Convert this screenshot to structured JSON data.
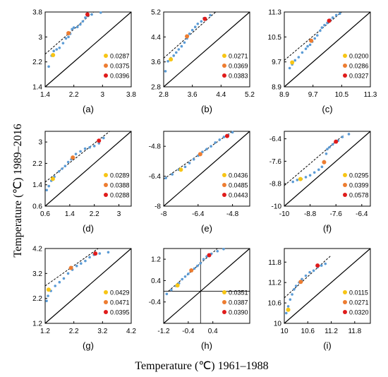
{
  "figure": {
    "ylabel": "Temperature (℃)  1989–2016",
    "xlabel": "Temperature (℃) 1961–1988"
  },
  "colors": {
    "points": "#5b9bd5",
    "p_low": "#f7c515",
    "p_mid": "#ed7d31",
    "p_high": "#e01b1b",
    "line": "#000000"
  },
  "chart_data": [
    {
      "type": "scatter",
      "panel_label": "(a)",
      "xlim": [
        1.4,
        3.8
      ],
      "ylim": [
        1.4,
        3.8
      ],
      "xticks": [
        "1.4",
        "2.2",
        "3",
        "3.8"
      ],
      "yticks": [
        "1.4",
        "2.2",
        "3",
        "3.8"
      ],
      "points": [
        [
          1.5,
          2.05
        ],
        [
          1.58,
          2.4
        ],
        [
          1.64,
          2.55
        ],
        [
          1.72,
          2.6
        ],
        [
          1.8,
          2.65
        ],
        [
          1.9,
          2.8
        ],
        [
          1.98,
          2.95
        ],
        [
          2.05,
          3.0
        ],
        [
          2.1,
          3.1
        ],
        [
          2.15,
          3.25
        ],
        [
          2.2,
          3.3
        ],
        [
          2.3,
          3.32
        ],
        [
          2.38,
          3.4
        ],
        [
          2.45,
          3.5
        ],
        [
          2.52,
          3.62
        ],
        [
          2.58,
          3.68
        ],
        [
          2.7,
          3.72
        ],
        [
          2.95,
          3.78
        ]
      ],
      "highlights": [
        {
          "x": 1.62,
          "y": 2.42,
          "color": "p_low",
          "label": "0.0287"
        },
        {
          "x": 2.05,
          "y": 3.12,
          "color": "p_mid",
          "label": "0.0375"
        },
        {
          "x": 2.58,
          "y": 3.72,
          "color": "p_high",
          "label": "0.0396"
        }
      ],
      "trend": [
        [
          1.4,
          2.45
        ],
        [
          2.75,
          3.8
        ]
      ]
    },
    {
      "type": "scatter",
      "panel_label": "(b)",
      "xlim": [
        2.8,
        5.2
      ],
      "ylim": [
        2.8,
        5.2
      ],
      "xticks": [
        "2.8",
        "3.6",
        "4.4",
        "5.2"
      ],
      "yticks": [
        "2.8",
        "3.6",
        "4.4",
        "5.2"
      ],
      "points": [
        [
          2.85,
          3.3
        ],
        [
          2.92,
          3.62
        ],
        [
          3.0,
          3.72
        ],
        [
          3.08,
          3.8
        ],
        [
          3.15,
          3.9
        ],
        [
          3.22,
          4.0
        ],
        [
          3.3,
          4.1
        ],
        [
          3.38,
          4.22
        ],
        [
          3.45,
          4.35
        ],
        [
          3.52,
          4.5
        ],
        [
          3.6,
          4.62
        ],
        [
          3.68,
          4.72
        ],
        [
          3.75,
          4.82
        ],
        [
          3.85,
          4.9
        ],
        [
          3.92,
          5.0
        ],
        [
          4.1,
          5.1
        ]
      ],
      "highlights": [
        {
          "x": 3.0,
          "y": 3.68,
          "color": "p_low",
          "label": "0.0271"
        },
        {
          "x": 3.45,
          "y": 4.42,
          "color": "p_mid",
          "label": "0.0369"
        },
        {
          "x": 3.95,
          "y": 4.98,
          "color": "p_high",
          "label": "0.0383"
        }
      ],
      "trend": [
        [
          2.8,
          3.72
        ],
        [
          4.25,
          5.2
        ]
      ]
    },
    {
      "type": "scatter",
      "panel_label": "(c)",
      "xlim": [
        8.9,
        11.3
      ],
      "ylim": [
        8.9,
        11.3
      ],
      "xticks": [
        "8.9",
        "9.7",
        "10.5",
        "11.3"
      ],
      "yticks": [
        "8.9",
        "9.7",
        "10.5",
        "11.3"
      ],
      "points": [
        [
          9.05,
          9.5
        ],
        [
          9.12,
          9.62
        ],
        [
          9.2,
          9.75
        ],
        [
          9.3,
          9.85
        ],
        [
          9.4,
          10.0
        ],
        [
          9.5,
          10.12
        ],
        [
          9.55,
          10.2
        ],
        [
          9.62,
          10.25
        ],
        [
          9.68,
          10.35
        ],
        [
          9.75,
          10.45
        ],
        [
          9.82,
          10.55
        ],
        [
          9.9,
          10.7
        ],
        [
          9.95,
          10.8
        ],
        [
          10.02,
          10.88
        ],
        [
          10.1,
          10.95
        ],
        [
          10.18,
          11.05
        ],
        [
          10.25,
          11.12
        ],
        [
          10.35,
          11.2
        ],
        [
          10.45,
          11.25
        ]
      ],
      "highlights": [
        {
          "x": 9.12,
          "y": 9.68,
          "color": "p_low",
          "label": "0.0200"
        },
        {
          "x": 9.65,
          "y": 10.38,
          "color": "p_mid",
          "label": "0.0286"
        },
        {
          "x": 10.15,
          "y": 11.02,
          "color": "p_high",
          "label": "0.0327"
        }
      ],
      "trend": [
        [
          8.9,
          9.75
        ],
        [
          10.5,
          11.3
        ]
      ]
    },
    {
      "type": "scatter",
      "panel_label": "(d)",
      "xlim": [
        0.6,
        3.4
      ],
      "ylim": [
        0.6,
        3.4
      ],
      "xticks": [
        "0.6",
        "1.4",
        "2.2",
        "3"
      ],
      "yticks": [
        "0.6",
        "1.4",
        "2.2",
        "3"
      ],
      "points": [
        [
          0.65,
          1.2
        ],
        [
          0.72,
          1.35
        ],
        [
          0.8,
          1.55
        ],
        [
          0.9,
          1.7
        ],
        [
          1.05,
          1.9
        ],
        [
          1.15,
          2.0
        ],
        [
          1.25,
          2.1
        ],
        [
          1.35,
          2.25
        ],
        [
          1.45,
          2.35
        ],
        [
          1.6,
          2.55
        ],
        [
          1.75,
          2.65
        ],
        [
          1.9,
          2.75
        ],
        [
          2.05,
          2.8
        ],
        [
          2.2,
          2.85
        ],
        [
          2.35,
          2.95
        ],
        [
          2.5,
          3.15
        ]
      ],
      "highlights": [
        {
          "x": 0.85,
          "y": 1.62,
          "color": "p_low",
          "label": "0.0289"
        },
        {
          "x": 1.5,
          "y": 2.42,
          "color": "p_mid",
          "label": "0.0388"
        },
        {
          "x": 2.35,
          "y": 3.05,
          "color": "p_high",
          "label": "0.0288"
        }
      ],
      "trend": [
        [
          0.6,
          1.5
        ],
        [
          2.7,
          3.4
        ]
      ]
    },
    {
      "type": "scatter",
      "panel_label": "(e)",
      "xlim": [
        -8,
        -4
      ],
      "ylim": [
        -8,
        -4
      ],
      "xticks": [
        "-8",
        "-6.4",
        "-4.8"
      ],
      "yticks": [
        "-8",
        "-6.4",
        "-4.8"
      ],
      "points": [
        [
          -7.9,
          -6.5
        ],
        [
          -7.6,
          -6.3
        ],
        [
          -7.3,
          -6.05
        ],
        [
          -7.0,
          -5.9
        ],
        [
          -6.8,
          -5.7
        ],
        [
          -6.6,
          -5.5
        ],
        [
          -6.4,
          -5.3
        ],
        [
          -6.2,
          -5.1
        ],
        [
          -6.0,
          -4.95
        ],
        [
          -5.8,
          -4.8
        ],
        [
          -5.6,
          -4.6
        ],
        [
          -5.4,
          -4.45
        ],
        [
          -5.2,
          -4.3
        ],
        [
          -5.0,
          -4.2
        ],
        [
          -4.8,
          -4.05
        ]
      ],
      "highlights": [
        {
          "x": -7.2,
          "y": -6.05,
          "color": "p_low",
          "label": "0.0436"
        },
        {
          "x": -6.3,
          "y": -5.22,
          "color": "p_mid",
          "label": "0.0485"
        },
        {
          "x": -5.05,
          "y": -4.25,
          "color": "p_high",
          "label": "0.0443"
        }
      ],
      "trend": [
        [
          -8,
          -6.55
        ],
        [
          -4.8,
          -4.0
        ]
      ]
    },
    {
      "type": "scatter",
      "panel_label": "(f)",
      "xlim": [
        -10,
        -6
      ],
      "ylim": [
        -10,
        -6
      ],
      "xticks": [
        "-10",
        "-8.8",
        "-7.6",
        "-6.4"
      ],
      "yticks": [
        "-10",
        "-8.8",
        "-7.6",
        "-6.4"
      ],
      "points": [
        [
          -9.6,
          -8.7
        ],
        [
          -9.4,
          -8.6
        ],
        [
          -9.2,
          -8.55
        ],
        [
          -9.0,
          -8.45
        ],
        [
          -8.8,
          -8.35
        ],
        [
          -8.6,
          -8.2
        ],
        [
          -8.4,
          -8.05
        ],
        [
          -8.25,
          -7.9
        ],
        [
          -8.15,
          -7.6
        ],
        [
          -8.05,
          -7.2
        ],
        [
          -8.0,
          -6.95
        ],
        [
          -7.9,
          -6.85
        ],
        [
          -7.75,
          -6.7
        ],
        [
          -7.5,
          -6.5
        ],
        [
          -7.3,
          -6.3
        ],
        [
          -7.0,
          -6.15
        ]
      ],
      "highlights": [
        {
          "x": -9.25,
          "y": -8.55,
          "color": "p_low",
          "label": "0.0295"
        },
        {
          "x": -8.15,
          "y": -7.65,
          "color": "p_mid",
          "label": "0.0399"
        },
        {
          "x": -7.6,
          "y": -6.55,
          "color": "p_high",
          "label": "0.0578"
        }
      ],
      "trend": [
        [
          -10,
          -8.9
        ],
        [
          -7.25,
          -6.2
        ]
      ]
    },
    {
      "type": "scatter",
      "panel_label": "(g)",
      "xlim": [
        1.2,
        4.2
      ],
      "ylim": [
        1.2,
        4.2
      ],
      "xticks": [
        "1.2",
        "2.2",
        "3.2",
        "4.2"
      ],
      "yticks": [
        "1.2",
        "2.2",
        "3.2",
        "4.2"
      ],
      "points": [
        [
          1.25,
          2.1
        ],
        [
          1.3,
          2.3
        ],
        [
          1.4,
          2.5
        ],
        [
          1.55,
          2.7
        ],
        [
          1.7,
          2.85
        ],
        [
          1.85,
          3.0
        ],
        [
          2.0,
          3.2
        ],
        [
          2.15,
          3.35
        ],
        [
          2.3,
          3.5
        ],
        [
          2.45,
          3.6
        ],
        [
          2.6,
          3.7
        ],
        [
          2.75,
          3.85
        ],
        [
          2.9,
          3.95
        ],
        [
          3.1,
          4.0
        ],
        [
          3.4,
          4.05
        ]
      ],
      "highlights": [
        {
          "x": 1.32,
          "y": 2.55,
          "color": "p_low",
          "label": "0.0429"
        },
        {
          "x": 2.1,
          "y": 3.42,
          "color": "p_mid",
          "label": "0.0471"
        },
        {
          "x": 2.95,
          "y": 4.0,
          "color": "p_high",
          "label": "0.0395"
        }
      ],
      "trend": [
        [
          1.2,
          2.7
        ],
        [
          3.05,
          4.2
        ]
      ]
    },
    {
      "type": "scatter",
      "panel_label": "(h)",
      "xlim": [
        -1.2,
        1.6
      ],
      "ylim": [
        -1.2,
        1.6
      ],
      "xticks": [
        "-1.2",
        "-0.4",
        "0.4"
      ],
      "yticks": [
        "-0.4",
        "0.4",
        "1.2"
      ],
      "origin_axes": true,
      "points": [
        [
          -1.1,
          -0.1
        ],
        [
          -0.95,
          0.05
        ],
        [
          -0.8,
          0.2
        ],
        [
          -0.7,
          0.3
        ],
        [
          -0.6,
          0.45
        ],
        [
          -0.5,
          0.55
        ],
        [
          -0.4,
          0.65
        ],
        [
          -0.3,
          0.75
        ],
        [
          -0.2,
          0.85
        ],
        [
          -0.1,
          0.95
        ],
        [
          0.0,
          1.05
        ],
        [
          0.1,
          1.2
        ],
        [
          0.2,
          1.3
        ],
        [
          0.35,
          1.4
        ],
        [
          0.55,
          1.5
        ],
        [
          0.75,
          1.58
        ]
      ],
      "highlights": [
        {
          "x": -0.75,
          "y": 0.22,
          "color": "p_low",
          "label": "0.0351"
        },
        {
          "x": -0.3,
          "y": 0.78,
          "color": "p_mid",
          "label": "0.0387"
        },
        {
          "x": 0.28,
          "y": 1.35,
          "color": "p_high",
          "label": "0.0390"
        }
      ],
      "trend": [
        [
          -1.05,
          0.0
        ],
        [
          0.55,
          1.6
        ]
      ]
    },
    {
      "type": "scatter",
      "panel_label": "(i)",
      "xlim": [
        10,
        12.2
      ],
      "ylim": [
        10,
        12.2
      ],
      "xticks": [
        "10",
        "10.6",
        "11.2",
        "11.8"
      ],
      "yticks": [
        "10",
        "10.6",
        "11.2",
        "11.8"
      ],
      "points": [
        [
          10.05,
          10.3
        ],
        [
          10.1,
          10.5
        ],
        [
          10.15,
          10.7
        ],
        [
          10.2,
          10.85
        ],
        [
          10.25,
          11.0
        ],
        [
          10.3,
          11.1
        ],
        [
          10.38,
          11.2
        ],
        [
          10.45,
          11.3
        ],
        [
          10.55,
          11.4
        ],
        [
          10.65,
          11.5
        ],
        [
          10.75,
          11.55
        ],
        [
          10.85,
          11.65
        ],
        [
          10.95,
          11.7
        ],
        [
          11.05,
          11.75
        ]
      ],
      "highlights": [
        {
          "x": 10.1,
          "y": 10.4,
          "color": "p_low",
          "label": "0.0115"
        },
        {
          "x": 10.42,
          "y": 11.22,
          "color": "p_mid",
          "label": "0.0271"
        },
        {
          "x": 10.85,
          "y": 11.7,
          "color": "p_high",
          "label": "0.0320"
        }
      ],
      "trend": [
        [
          10.0,
          10.75
        ],
        [
          11.2,
          12.0
        ]
      ]
    }
  ]
}
